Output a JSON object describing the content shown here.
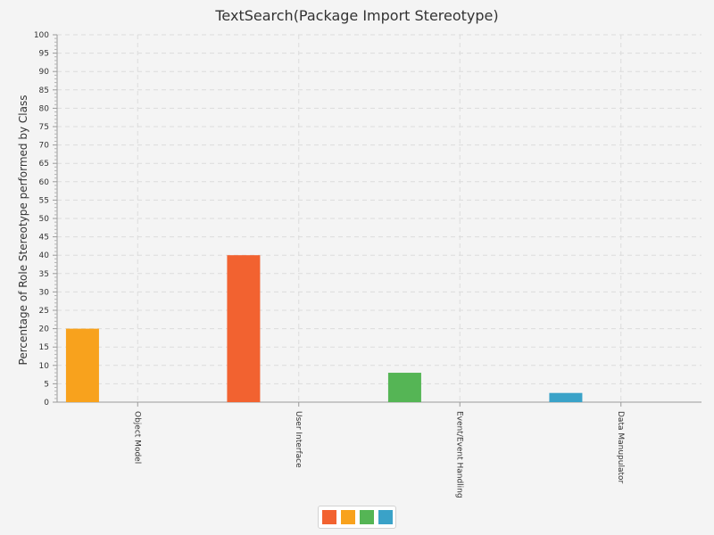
{
  "chart_data": {
    "type": "bar",
    "title": "TextSearch(Package Import Stereotype)",
    "xlabel": "",
    "ylabel": "Percentage of Role Stereotype performed by Class",
    "ylim": [
      0,
      100
    ],
    "ytick_step": 5,
    "grid": true,
    "legend_position": "bottom-center",
    "categories": [
      "Object Model",
      "User Interface",
      "Event/Event Handling",
      "Data Manupulator"
    ],
    "series": [
      {
        "values": [
          0,
          40,
          0,
          0
        ],
        "color": "#f26230"
      },
      {
        "values": [
          20,
          0,
          0,
          0
        ],
        "color": "#f8a21d"
      },
      {
        "values": [
          0,
          0,
          8,
          0
        ],
        "color": "#55b555"
      },
      {
        "values": [
          0,
          0,
          0,
          2.5
        ],
        "color": "#3aa2c8"
      }
    ]
  }
}
